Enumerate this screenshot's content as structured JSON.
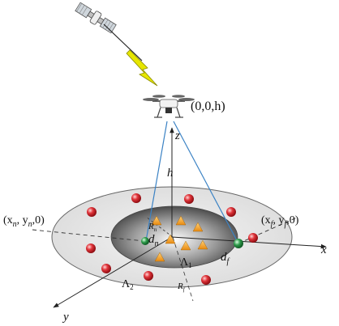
{
  "labels": {
    "uav_coord": "(0,0,h)",
    "z_axis": "z",
    "h_height": "h",
    "near_coord": "(x",
    "near_coord_sub_n1": "n",
    "near_coord_mid": ", y",
    "near_coord_sub_n2": "n",
    "near_coord_end": ",0)",
    "far_coord": "(x",
    "far_coord_sub_f1": "f",
    "far_coord_mid": ", y",
    "far_coord_sub_f2": "f",
    "far_coord_end": ",0)",
    "x_axis": "x",
    "y_axis": "y",
    "dn": "d",
    "dn_sub": "n",
    "df": "d",
    "df_sub": "f",
    "lambda1": "Λ",
    "lambda1_sub": "1",
    "lambda2": "Λ",
    "lambda2_sub": "2",
    "rn": "R",
    "rn_sub": "n",
    "rf": "R",
    "rf_sub": "f"
  },
  "colors": {
    "outer_ring": "#e3e3e3",
    "inner_disk": "#555555",
    "signal_lines": "#3b82c4",
    "lightning": "#e6e600",
    "red_user": "#d8232a",
    "green_user": "#2e9a4a",
    "triangle_user": "#f2a830"
  }
}
